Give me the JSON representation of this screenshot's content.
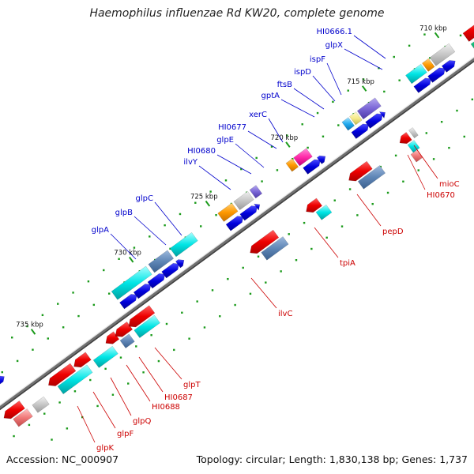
{
  "title": "Haemophilus influenzae Rd KW20, complete genome",
  "accession": "Accession: NC_000907",
  "summary": "Topology: circular; Length: 1,830,138 bp; Genes: 1,737",
  "ticks": [
    "710 kbp",
    "715 kbp",
    "720 kbp",
    "725 kbp",
    "730 kbp",
    "735 kbp"
  ],
  "colors": {
    "forward_label": "#0000cc",
    "reverse_label": "#cc0000",
    "cds": "#0000dd",
    "backbone": "#888888"
  },
  "forward_genes": [
    "HI0666.1",
    "glpX",
    "ispF",
    "ispD",
    "ftsB",
    "gptA",
    "xerC",
    "HI0677",
    "glpE",
    "HI0680",
    "ilvY",
    "glpC",
    "glpB",
    "glpA"
  ],
  "reverse_genes": [
    "mioC",
    "HI0670",
    "pepD",
    "tpiA",
    "ilvC",
    "glpT",
    "HI0687",
    "HI0688",
    "glpQ",
    "glpF",
    "glpK"
  ]
}
